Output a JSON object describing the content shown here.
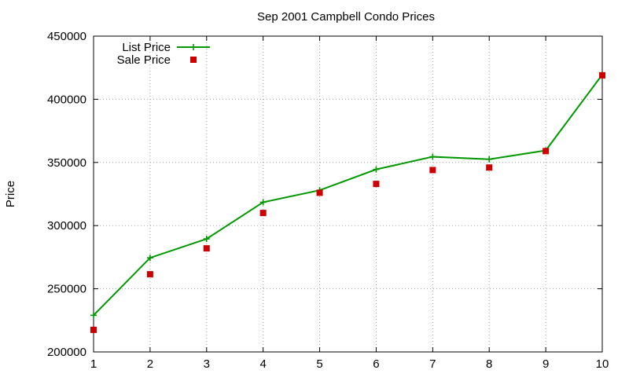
{
  "chart_data": {
    "type": "line",
    "title": "Sep 2001 Campbell Condo Prices",
    "xlabel": "",
    "ylabel": "Price",
    "xlim": [
      1,
      10
    ],
    "ylim": [
      200000,
      450000
    ],
    "x_ticks": [
      1,
      2,
      3,
      4,
      5,
      6,
      7,
      8,
      9,
      10
    ],
    "y_ticks": [
      200000,
      250000,
      300000,
      350000,
      400000,
      450000
    ],
    "grid": true,
    "legend_position": "top-left",
    "series": [
      {
        "name": "List Price",
        "style": "line-with-plus-markers",
        "color": "#009900",
        "x": [
          1,
          2,
          3,
          4,
          5,
          6,
          7,
          8,
          9,
          10
        ],
        "values": [
          229000,
          274500,
          289500,
          318500,
          328000,
          344500,
          354500,
          352500,
          359500,
          419500
        ]
      },
      {
        "name": "Sale Price",
        "style": "square-points",
        "color": "#cc0000",
        "x": [
          1,
          2,
          3,
          4,
          5,
          6,
          7,
          8,
          9,
          10
        ],
        "values": [
          217500,
          261500,
          282000,
          310000,
          326000,
          333000,
          344000,
          346000,
          359000,
          419000
        ]
      }
    ]
  }
}
